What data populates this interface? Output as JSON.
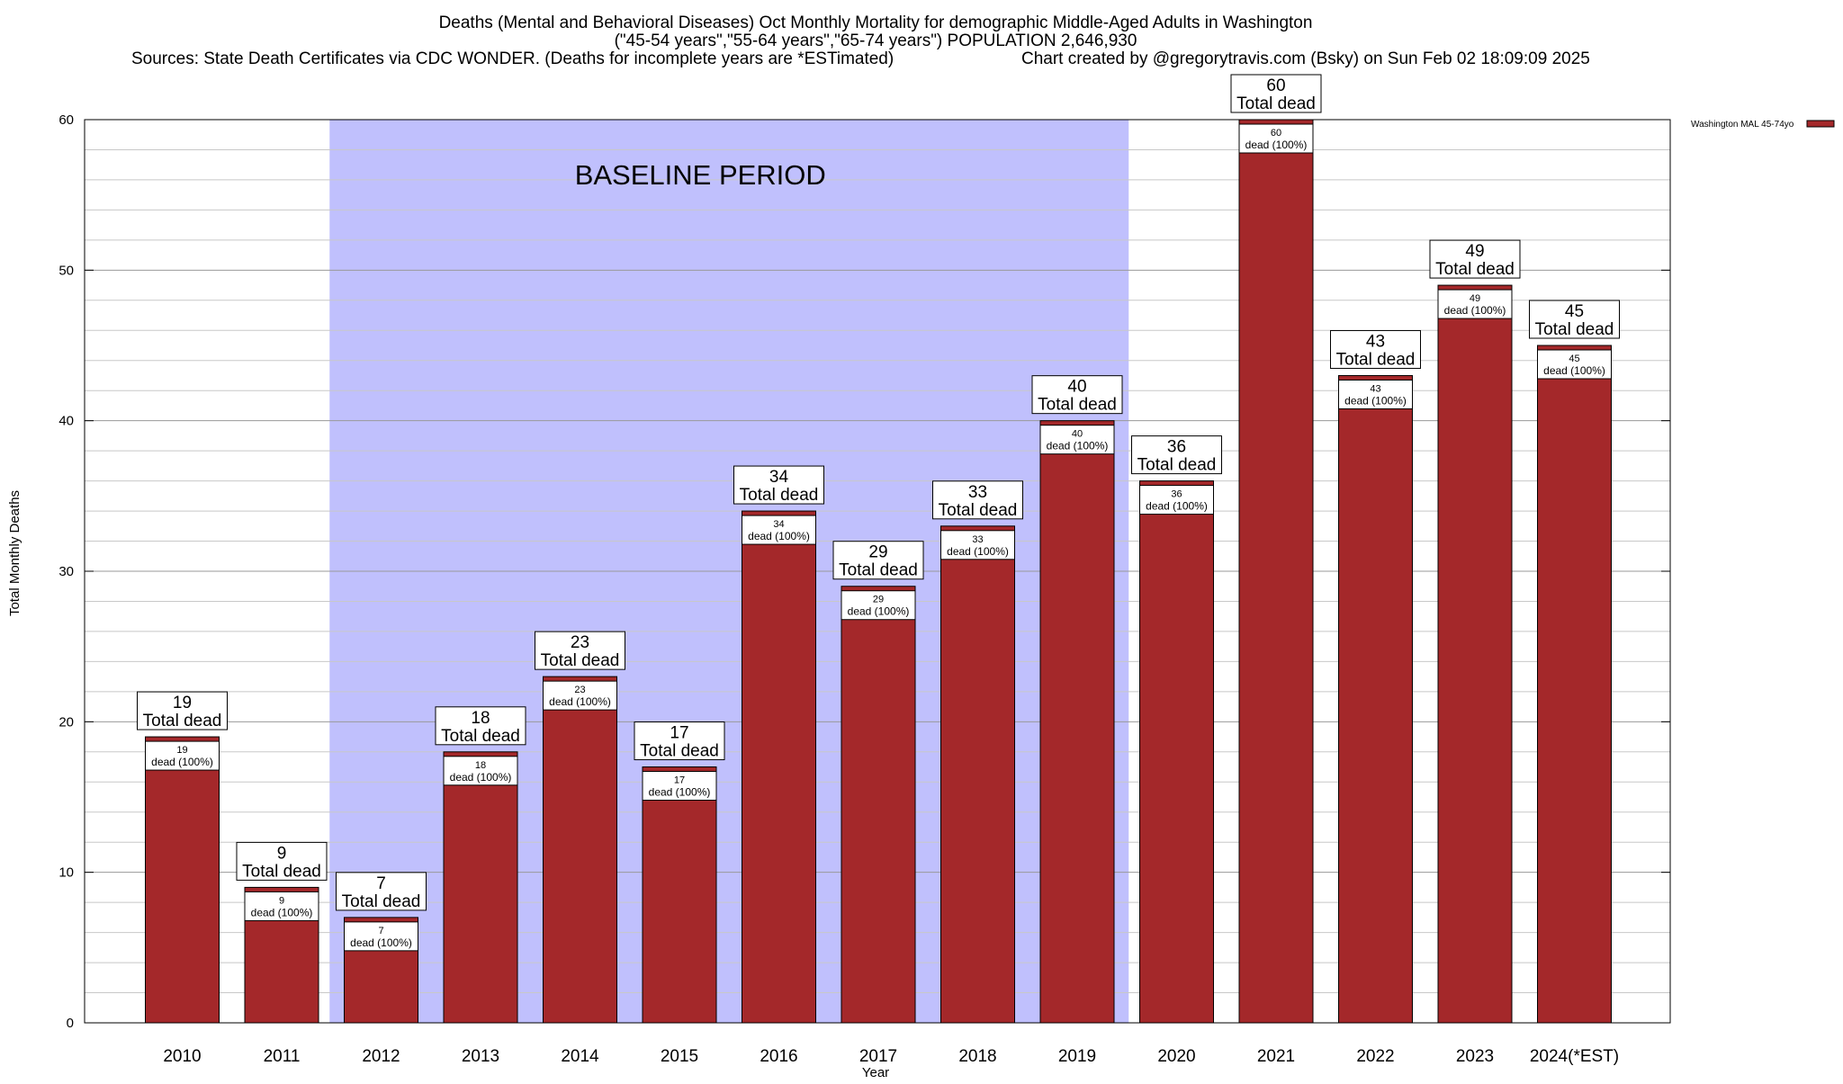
{
  "chart_data": {
    "type": "bar",
    "title_lines": [
      "Deaths (Mental and Behavioral Diseases) Oct Monthly Mortality for demographic Middle-Aged Adults in Washington",
      "(\"45-54 years\",\"55-64 years\",\"65-74 years\") POPULATION 2,646,930"
    ],
    "sources": "Sources: State Death Certificates via CDC WONDER. (Deaths for incomplete years are *ESTimated)",
    "credit": "Chart created by @gregorytravis.com (Bsky) on Sun Feb 02 18:09:09 2025",
    "xlabel": "Year",
    "ylabel": "Total Monthly Deaths",
    "ylim": [
      0,
      60
    ],
    "yticks": [
      "0",
      "10",
      "20",
      "30",
      "40",
      "50",
      "60"
    ],
    "grid": true,
    "legend": {
      "placement": "top-right-outside",
      "label": "Washington MAL 45-74yo"
    },
    "categories": [
      "2010",
      "2011",
      "2012",
      "2013",
      "2014",
      "2015",
      "2016",
      "2017",
      "2018",
      "2019",
      "2020",
      "2021",
      "2022",
      "2023",
      "2024(*EST)"
    ],
    "series": [
      {
        "name": "Washington MAL 45-74yo",
        "values": [
          19,
          9,
          7,
          18,
          23,
          17,
          34,
          29,
          33,
          40,
          36,
          60,
          43,
          49,
          45
        ]
      }
    ],
    "total_label_text": "Total dead",
    "inner_label_text": "dead (100%)",
    "baseline": {
      "label": "BASELINE PERIOD",
      "from": "2012",
      "to": "2019"
    },
    "colors": {
      "bar": "#a4282a",
      "baseline": "#c0c0fd",
      "grid": "#c8c8c8"
    }
  }
}
